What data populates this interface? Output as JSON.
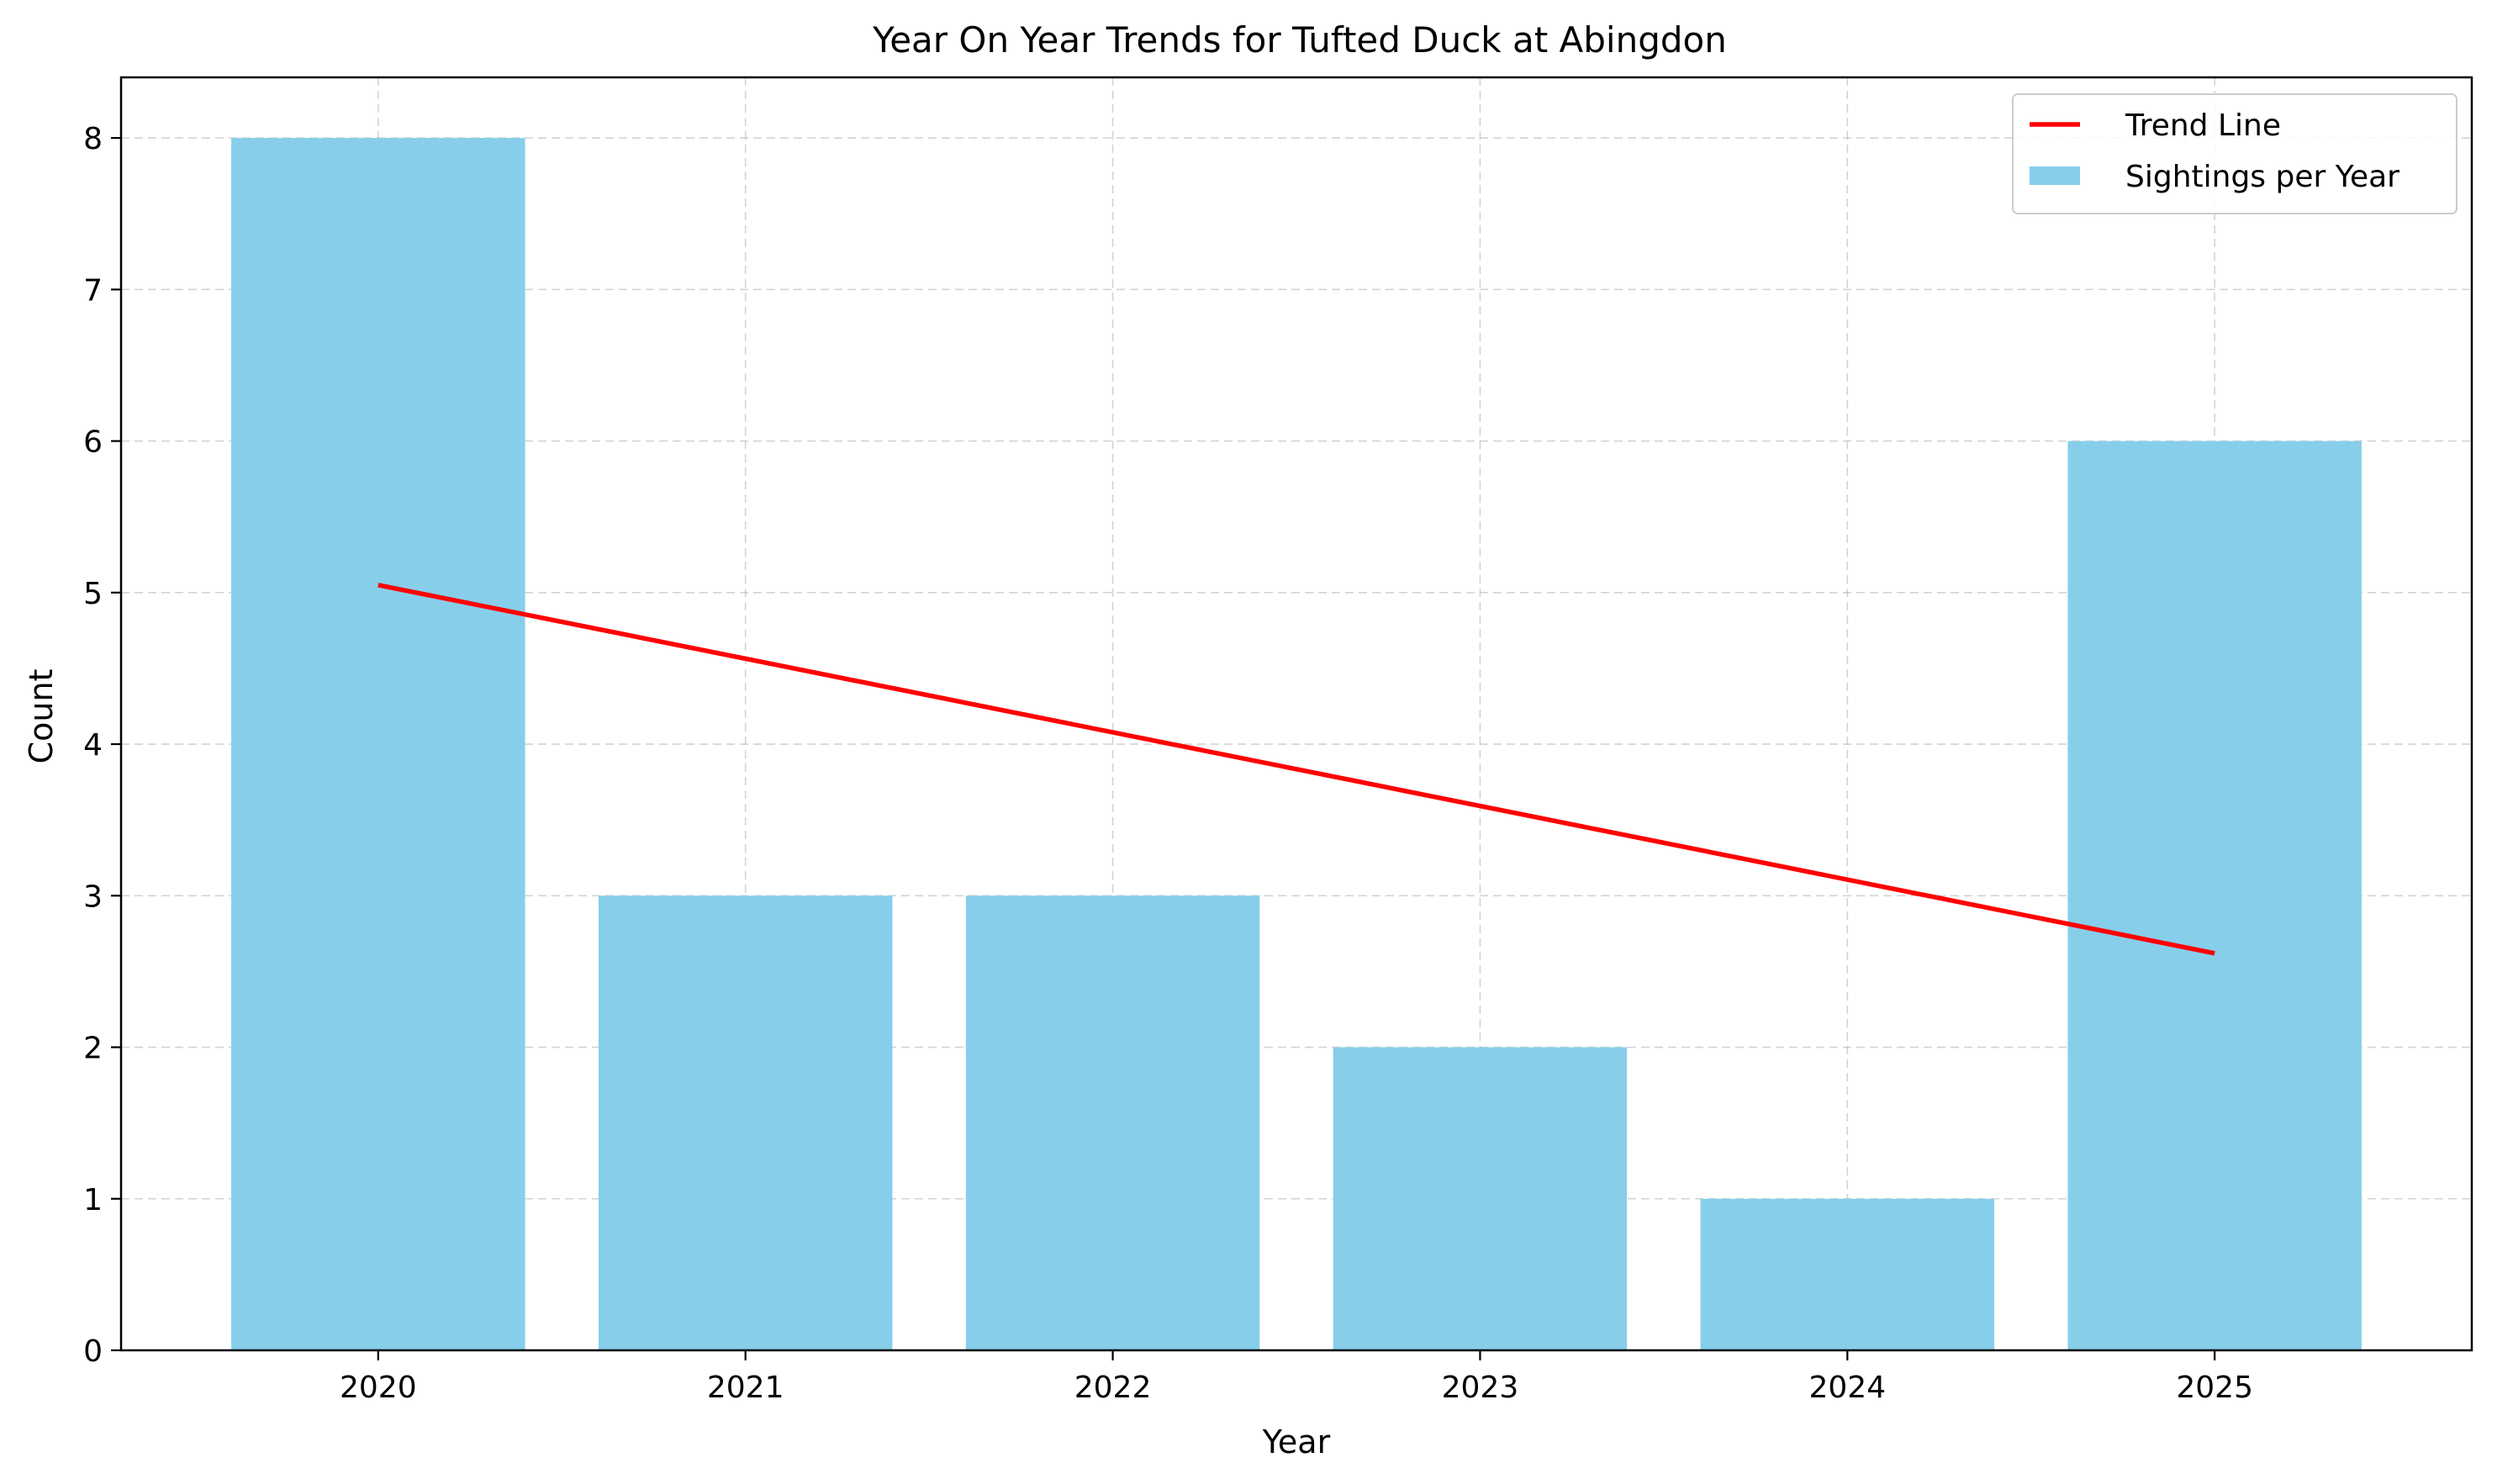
{
  "chart_data": {
    "type": "bar",
    "title": "Year On Year Trends for Tufted Duck at Abingdon",
    "xlabel": "Year",
    "ylabel": "Count",
    "categories": [
      "2020",
      "2021",
      "2022",
      "2023",
      "2024",
      "2025"
    ],
    "series": [
      {
        "name": "Sightings per Year",
        "type": "bar",
        "color": "#87CEEB",
        "values": [
          8,
          3,
          3,
          2,
          1,
          6
        ]
      },
      {
        "name": "Trend Line",
        "type": "line",
        "color": "#FF0000",
        "x": [
          "2020",
          "2025"
        ],
        "values": [
          5.05,
          2.62
        ]
      }
    ],
    "y_ticks": [
      "0",
      "1",
      "2",
      "3",
      "4",
      "5",
      "6",
      "7",
      "8"
    ],
    "ylim": [
      0,
      8.4
    ],
    "grid": true,
    "legend_position": "top-right"
  }
}
